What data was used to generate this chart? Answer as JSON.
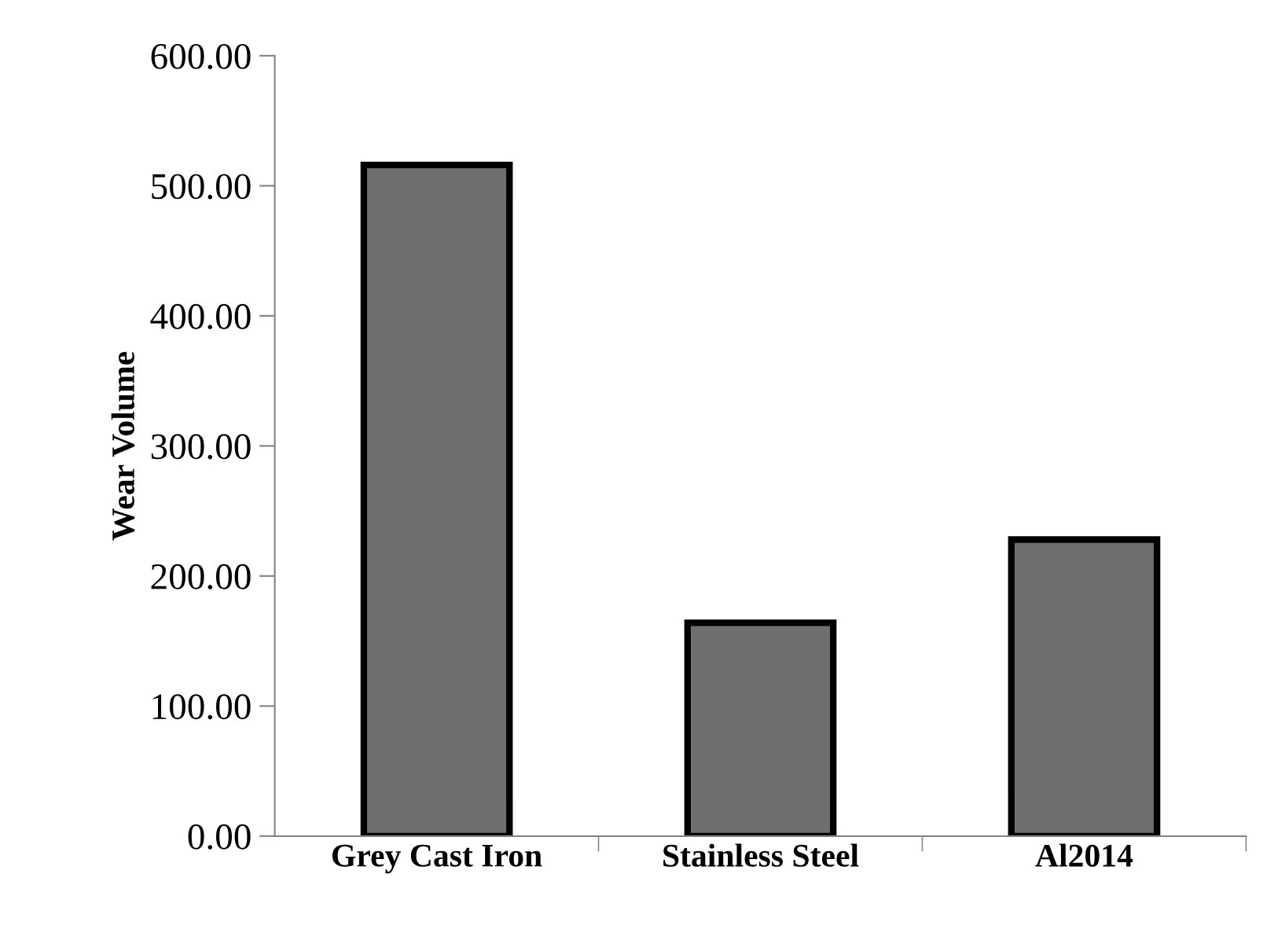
{
  "chart_data": {
    "type": "bar",
    "ylabel": "Wear Volume",
    "categories": [
      "Grey Cast Iron",
      "Stainless Steel",
      "Al2014"
    ],
    "values": [
      516,
      164,
      228
    ],
    "color": "#6e6e6e",
    "ylim": [
      0,
      600
    ],
    "yticks": [
      {
        "value": 0,
        "label": "0.00"
      },
      {
        "value": 100,
        "label": "100.00"
      },
      {
        "value": 200,
        "label": "200.00"
      },
      {
        "value": 300,
        "label": "300.00"
      },
      {
        "value": 400,
        "label": "400.00"
      },
      {
        "value": 500,
        "label": "500.00"
      },
      {
        "value": 600,
        "label": "600.00"
      }
    ],
    "grid": false,
    "legend": false
  }
}
